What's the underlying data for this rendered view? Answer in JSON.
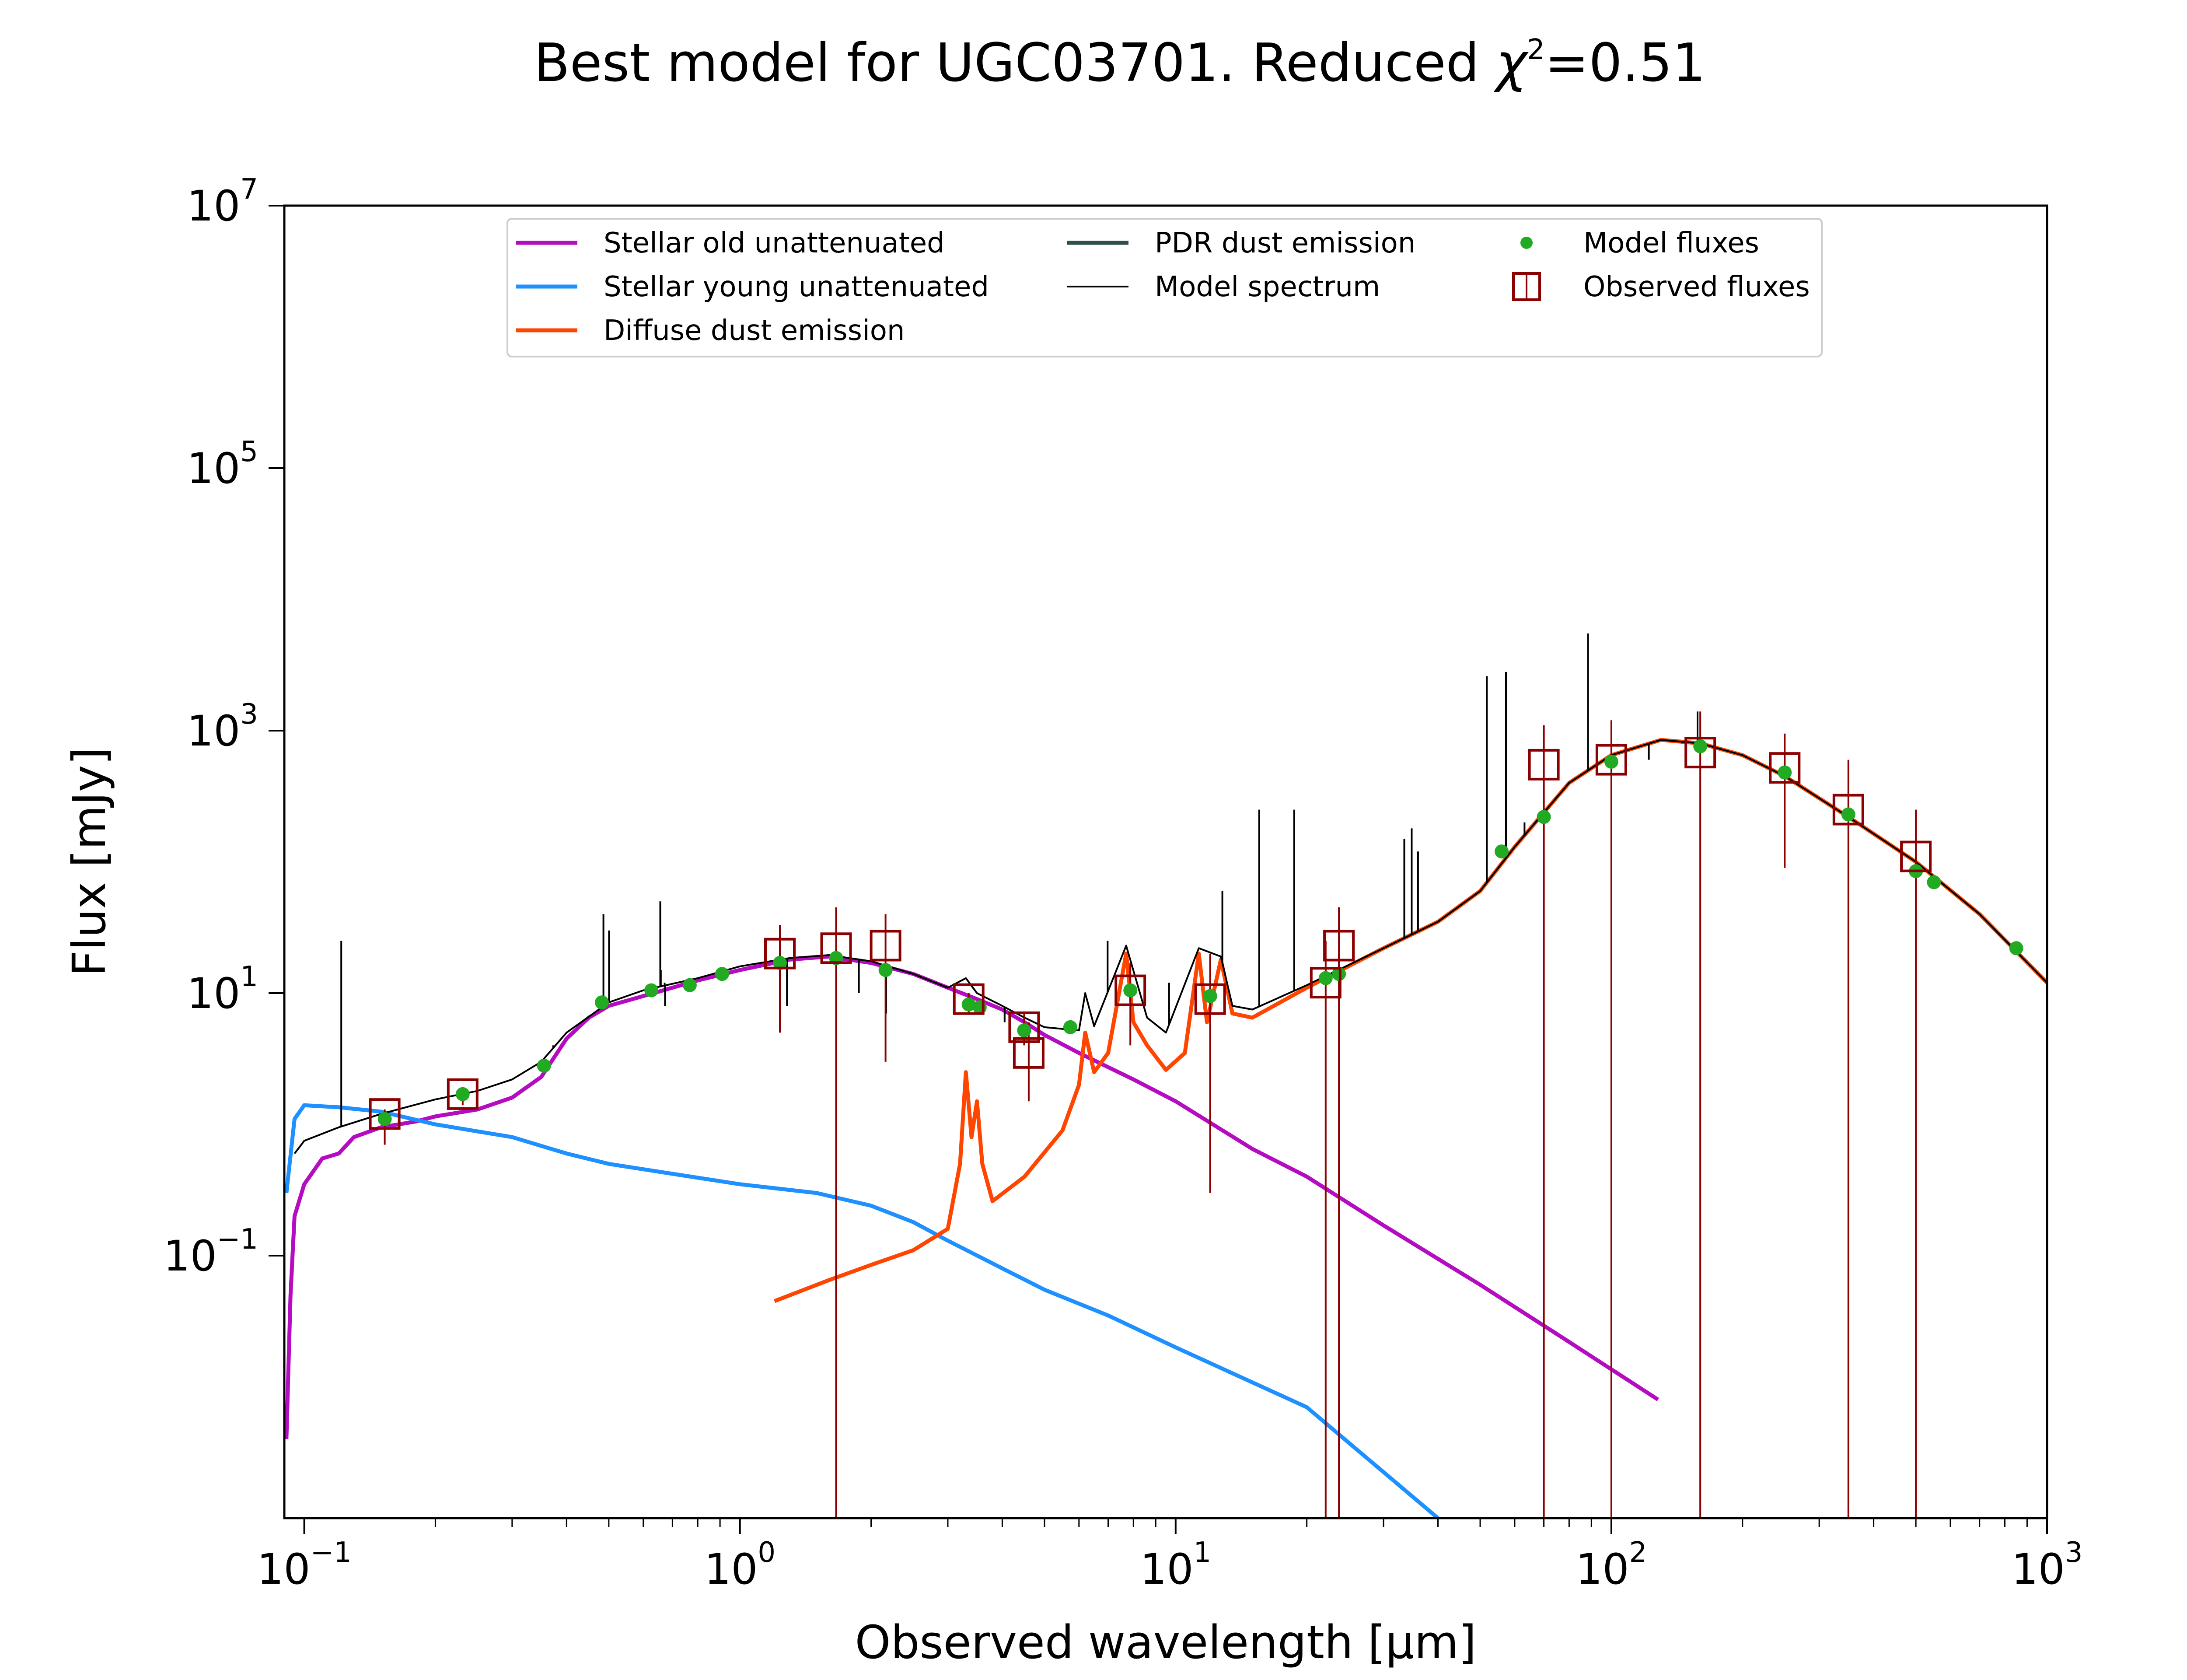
{
  "chart_data": {
    "type": "line",
    "title": "Best model for UGC03701. Reduced χ²=0.51",
    "title_main": "Best model for UGC03701. Reduced ",
    "title_chi": "χ",
    "title_sup": "2",
    "title_end": "=0.51",
    "xlabel": "Observed wavelength [μm]",
    "ylabel": "Flux [mJy]",
    "xscale": "log",
    "yscale": "log",
    "xlim": [
      0.09,
      1000
    ],
    "ylim": [
      0.001,
      10000000
    ],
    "grid": false,
    "legend_position": "top-center",
    "x_ticks": [
      {
        "base": "10",
        "exp": "−1",
        "value": 0.1
      },
      {
        "base": "10",
        "exp": "0",
        "value": 1
      },
      {
        "base": "10",
        "exp": "1",
        "value": 10
      },
      {
        "base": "10",
        "exp": "2",
        "value": 100
      },
      {
        "base": "10",
        "exp": "3",
        "value": 1000
      }
    ],
    "y_ticks": [
      {
        "base": "10",
        "exp": "−1",
        "value": 0.1
      },
      {
        "base": "10",
        "exp": "1",
        "value": 10
      },
      {
        "base": "10",
        "exp": "3",
        "value": 1000
      },
      {
        "base": "10",
        "exp": "5",
        "value": 100000
      },
      {
        "base": "10",
        "exp": "7",
        "value": 10000000
      }
    ],
    "legend": [
      {
        "label": "Stellar old unattenuated",
        "color": "#b40cc0",
        "kind": "line"
      },
      {
        "label": "Stellar young unattenuated",
        "color": "#1e90ff",
        "kind": "line"
      },
      {
        "label": "Diffuse dust emission",
        "color": "#ff4500",
        "kind": "line"
      },
      {
        "label": "PDR dust emission",
        "color": "#2f4f4f",
        "kind": "line"
      },
      {
        "label": "Model spectrum",
        "color": "#000000",
        "kind": "thinline"
      },
      {
        "label": "Model fluxes",
        "color": "#22aa22",
        "kind": "dot"
      },
      {
        "label": "Observed fluxes",
        "color": "#8b0000",
        "kind": "square"
      }
    ],
    "series": [
      {
        "name": "Stellar old unattenuated",
        "color": "#b40cc0",
        "points": [
          [
            0.091,
            0.004
          ],
          [
            0.093,
            0.05
          ],
          [
            0.095,
            0.2
          ],
          [
            0.1,
            0.35
          ],
          [
            0.11,
            0.55
          ],
          [
            0.12,
            0.6
          ],
          [
            0.13,
            0.8
          ],
          [
            0.15,
            0.95
          ],
          [
            0.18,
            1.05
          ],
          [
            0.2,
            1.15
          ],
          [
            0.25,
            1.3
          ],
          [
            0.3,
            1.6
          ],
          [
            0.35,
            2.3
          ],
          [
            0.4,
            4.5
          ],
          [
            0.45,
            6.5
          ],
          [
            0.5,
            8.0
          ],
          [
            0.6,
            9.5
          ],
          [
            0.7,
            11
          ],
          [
            0.8,
            12.5
          ],
          [
            1.0,
            15
          ],
          [
            1.3,
            18
          ],
          [
            1.6,
            19
          ],
          [
            2.0,
            17
          ],
          [
            2.5,
            14
          ],
          [
            3.0,
            11
          ],
          [
            3.5,
            9
          ],
          [
            4.0,
            7.5
          ],
          [
            4.5,
            6
          ],
          [
            5.0,
            4.8
          ],
          [
            6.0,
            3.5
          ],
          [
            8.0,
            2.2
          ],
          [
            10,
            1.5
          ],
          [
            15,
            0.65
          ],
          [
            20,
            0.4
          ],
          [
            30,
            0.17
          ],
          [
            50,
            0.06
          ],
          [
            80,
            0.022
          ],
          [
            128,
            0.008
          ]
        ]
      },
      {
        "name": "Stellar young unattenuated",
        "color": "#1e90ff",
        "points": [
          [
            0.091,
            0.3
          ],
          [
            0.095,
            1.1
          ],
          [
            0.1,
            1.4
          ],
          [
            0.12,
            1.35
          ],
          [
            0.15,
            1.25
          ],
          [
            0.2,
            1.0
          ],
          [
            0.3,
            0.8
          ],
          [
            0.4,
            0.6
          ],
          [
            0.5,
            0.5
          ],
          [
            0.7,
            0.42
          ],
          [
            1.0,
            0.35
          ],
          [
            1.5,
            0.3
          ],
          [
            2.0,
            0.24
          ],
          [
            2.5,
            0.18
          ],
          [
            3.0,
            0.13
          ],
          [
            4.0,
            0.08
          ],
          [
            5.0,
            0.055
          ],
          [
            7.0,
            0.035
          ],
          [
            10,
            0.02
          ],
          [
            20,
            0.007
          ],
          [
            40,
            0.001
          ]
        ]
      },
      {
        "name": "Diffuse dust emission",
        "color": "#ff4500",
        "points": [
          [
            1.2,
            0.045
          ],
          [
            1.6,
            0.065
          ],
          [
            2.0,
            0.085
          ],
          [
            2.5,
            0.11
          ],
          [
            3.0,
            0.16
          ],
          [
            3.2,
            0.5
          ],
          [
            3.3,
            2.5
          ],
          [
            3.4,
            0.8
          ],
          [
            3.5,
            1.5
          ],
          [
            3.6,
            0.5
          ],
          [
            3.8,
            0.26
          ],
          [
            4.5,
            0.4
          ],
          [
            5.5,
            0.9
          ],
          [
            6.0,
            2.0
          ],
          [
            6.2,
            5.0
          ],
          [
            6.5,
            2.5
          ],
          [
            7.0,
            3.5
          ],
          [
            7.7,
            20
          ],
          [
            8.0,
            6.0
          ],
          [
            8.6,
            4.0
          ],
          [
            9.5,
            2.6
          ],
          [
            10.5,
            3.5
          ],
          [
            11.3,
            20
          ],
          [
            11.8,
            6.0
          ],
          [
            12.7,
            18
          ],
          [
            13.5,
            7.0
          ],
          [
            15,
            6.5
          ],
          [
            20,
            11
          ],
          [
            30,
            22
          ],
          [
            40,
            35
          ],
          [
            50,
            60
          ],
          [
            60,
            130
          ],
          [
            80,
            400
          ],
          [
            100,
            650
          ],
          [
            130,
            850
          ],
          [
            160,
            800
          ],
          [
            200,
            650
          ],
          [
            250,
            450
          ],
          [
            350,
            220
          ],
          [
            500,
            100
          ],
          [
            700,
            40
          ],
          [
            1000,
            12
          ]
        ]
      },
      {
        "name": "Model spectrum",
        "color": "#000000",
        "points": [
          [
            0.095,
            0.6
          ],
          [
            0.1,
            0.75
          ],
          [
            0.12,
            0.95
          ],
          [
            0.15,
            1.2
          ],
          [
            0.2,
            1.55
          ],
          [
            0.25,
            1.8
          ],
          [
            0.3,
            2.2
          ],
          [
            0.35,
            3.0
          ],
          [
            0.4,
            5.0
          ],
          [
            0.5,
            8.5
          ],
          [
            0.6,
            10.5
          ],
          [
            0.8,
            13
          ],
          [
            1.0,
            16
          ],
          [
            1.3,
            18.5
          ],
          [
            1.6,
            19.5
          ],
          [
            2.0,
            17.5
          ],
          [
            2.5,
            14
          ],
          [
            3.0,
            11
          ],
          [
            3.3,
            13
          ],
          [
            3.5,
            10
          ],
          [
            4.0,
            8.0
          ],
          [
            4.5,
            6.5
          ],
          [
            5.0,
            5.5
          ],
          [
            6.0,
            5.2
          ],
          [
            6.2,
            10
          ],
          [
            6.5,
            5.6
          ],
          [
            7.7,
            23
          ],
          [
            8.6,
            6.5
          ],
          [
            9.5,
            5.0
          ],
          [
            11.3,
            22
          ],
          [
            12.7,
            19
          ],
          [
            13.5,
            8
          ],
          [
            15,
            7.5
          ],
          [
            20,
            11.5
          ],
          [
            30,
            22
          ],
          [
            40,
            35
          ],
          [
            50,
            60
          ],
          [
            60,
            130
          ],
          [
            80,
            400
          ],
          [
            100,
            650
          ],
          [
            130,
            850
          ],
          [
            160,
            800
          ],
          [
            200,
            650
          ],
          [
            250,
            450
          ],
          [
            350,
            220
          ],
          [
            500,
            100
          ],
          [
            700,
            40
          ],
          [
            1000,
            12
          ]
        ],
        "emission_lines": [
          [
            0.1216,
            25
          ],
          [
            0.3727,
            4
          ],
          [
            0.4861,
            40
          ],
          [
            0.5007,
            30
          ],
          [
            0.6563,
            50
          ],
          [
            0.6583,
            15
          ],
          [
            0.6731,
            8
          ],
          [
            0.6716,
            12
          ],
          [
            1.282,
            8
          ],
          [
            1.875,
            10
          ],
          [
            2.166,
            7
          ],
          [
            4.05,
            6
          ],
          [
            6.98,
            25
          ],
          [
            9.66,
            12
          ],
          [
            12.8,
            60
          ],
          [
            15.55,
            250
          ],
          [
            18.71,
            250
          ],
          [
            33.48,
            150
          ],
          [
            34.82,
            180
          ],
          [
            36,
            120
          ],
          [
            51.8,
            2600
          ],
          [
            57.3,
            2800
          ],
          [
            63.2,
            200
          ],
          [
            88.4,
            5500
          ],
          [
            121.9,
            600
          ],
          [
            145.5,
            800
          ],
          [
            157.7,
            1400
          ]
        ]
      }
    ],
    "model_fluxes": [
      [
        0.153,
        1.1
      ],
      [
        0.231,
        1.7
      ],
      [
        0.355,
        2.8
      ],
      [
        0.482,
        8.5
      ],
      [
        0.626,
        10.5
      ],
      [
        0.767,
        11.5
      ],
      [
        0.91,
        14
      ],
      [
        1.235,
        17
      ],
      [
        1.662,
        18.5
      ],
      [
        2.159,
        15
      ],
      [
        3.35,
        8.2
      ],
      [
        3.55,
        7.8
      ],
      [
        4.49,
        5.2
      ],
      [
        5.73,
        5.5
      ],
      [
        7.87,
        10.5
      ],
      [
        12,
        9.5
      ],
      [
        22.1,
        13
      ],
      [
        23.7,
        14
      ],
      [
        56,
        120
      ],
      [
        70,
        220
      ],
      [
        100,
        580
      ],
      [
        160,
        760
      ],
      [
        250,
        480
      ],
      [
        350,
        230
      ],
      [
        500,
        85
      ],
      [
        550,
        70
      ],
      [
        850,
        22
      ]
    ],
    "observed_fluxes": [
      {
        "x": 0.153,
        "y": 1.2,
        "lo": 0.7,
        "hi": 1.3
      },
      {
        "x": 0.231,
        "y": 1.7,
        "lo": 1.4,
        "hi": 1.9
      },
      {
        "x": 1.235,
        "y": 20,
        "lo": 5,
        "hi": 33
      },
      {
        "x": 1.662,
        "y": 22,
        "lo": 0.001,
        "hi": 45
      },
      {
        "x": 2.159,
        "y": 23,
        "lo": 3,
        "hi": 40
      },
      {
        "x": 3.35,
        "y": 9,
        "lo": 7,
        "hi": 10
      },
      {
        "x": 4.49,
        "y": 5.5,
        "lo": 4,
        "hi": 7
      },
      {
        "x": 4.6,
        "y": 3.5,
        "lo": 1.5,
        "hi": 6
      },
      {
        "x": 7.87,
        "y": 10.5,
        "lo": 4,
        "hi": 17
      },
      {
        "x": 12,
        "y": 9,
        "lo": 0.3,
        "hi": 20
      },
      {
        "x": 22.1,
        "y": 12,
        "lo": 0.001,
        "hi": 25
      },
      {
        "x": 23.7,
        "y": 23,
        "lo": 0.001,
        "hi": 45
      },
      {
        "x": 70,
        "y": 550,
        "lo": 0.001,
        "hi": 1100
      },
      {
        "x": 100,
        "y": 600,
        "lo": 0.001,
        "hi": 1200
      },
      {
        "x": 160,
        "y": 680,
        "lo": 0.001,
        "hi": 1400
      },
      {
        "x": 250,
        "y": 520,
        "lo": 90,
        "hi": 950
      },
      {
        "x": 350,
        "y": 250,
        "lo": 0.001,
        "hi": 600
      },
      {
        "x": 500,
        "y": 110,
        "lo": 0.001,
        "hi": 250
      }
    ]
  }
}
